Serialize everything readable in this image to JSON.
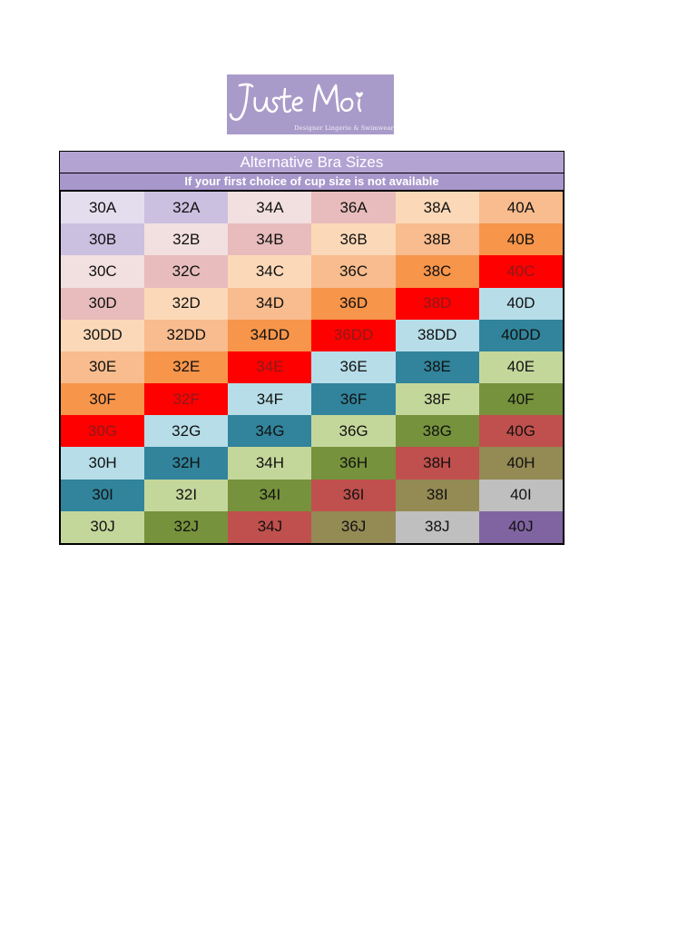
{
  "logo": {
    "text": "Juste Moi",
    "tagline": "Designer Lingerie & Swimwear",
    "background": "#a99bc9"
  },
  "table": {
    "title": "Alternative Bra Sizes",
    "subtitle": "If your first choice of cup size is not available",
    "rows": [
      [
        {
          "label": "30A",
          "bg": "#e3ddee",
          "fg": "#111111"
        },
        {
          "label": "32A",
          "bg": "#cbc0e0",
          "fg": "#111111"
        },
        {
          "label": "34A",
          "bg": "#f2dfe0",
          "fg": "#111111"
        },
        {
          "label": "36A",
          "bg": "#e8bcbc",
          "fg": "#111111"
        },
        {
          "label": "38A",
          "bg": "#fbd9b8",
          "fg": "#111111"
        },
        {
          "label": "40A",
          "bg": "#f8bc8e",
          "fg": "#111111"
        }
      ],
      [
        {
          "label": "30B",
          "bg": "#cbc0e0",
          "fg": "#111111"
        },
        {
          "label": "32B",
          "bg": "#f2dfe0",
          "fg": "#111111"
        },
        {
          "label": "34B",
          "bg": "#e8bcbc",
          "fg": "#111111"
        },
        {
          "label": "36B",
          "bg": "#fbd9b8",
          "fg": "#111111"
        },
        {
          "label": "38B",
          "bg": "#f8bc8e",
          "fg": "#111111"
        },
        {
          "label": "40B",
          "bg": "#f7954a",
          "fg": "#111111"
        }
      ],
      [
        {
          "label": "30C",
          "bg": "#f2dfe0",
          "fg": "#111111"
        },
        {
          "label": "32C",
          "bg": "#e8bcbc",
          "fg": "#111111"
        },
        {
          "label": "34C",
          "bg": "#fbd9b8",
          "fg": "#111111"
        },
        {
          "label": "36C",
          "bg": "#f8bc8e",
          "fg": "#111111"
        },
        {
          "label": "38C",
          "bg": "#f7954a",
          "fg": "#111111"
        },
        {
          "label": "40C",
          "bg": "#ff0000",
          "fg": "#8b1a1a"
        }
      ],
      [
        {
          "label": "30D",
          "bg": "#e8bcbc",
          "fg": "#111111"
        },
        {
          "label": "32D",
          "bg": "#fbd9b8",
          "fg": "#111111"
        },
        {
          "label": "34D",
          "bg": "#f8bc8e",
          "fg": "#111111"
        },
        {
          "label": "36D",
          "bg": "#f7954a",
          "fg": "#111111"
        },
        {
          "label": "38D",
          "bg": "#ff0000",
          "fg": "#8b1a1a"
        },
        {
          "label": "40D",
          "bg": "#b7dde8",
          "fg": "#111111"
        }
      ],
      [
        {
          "label": "30DD",
          "bg": "#fbd9b8",
          "fg": "#111111"
        },
        {
          "label": "32DD",
          "bg": "#f8bc8e",
          "fg": "#111111"
        },
        {
          "label": "34DD",
          "bg": "#f7954a",
          "fg": "#111111"
        },
        {
          "label": "36DD",
          "bg": "#ff0000",
          "fg": "#8b1a1a"
        },
        {
          "label": "38DD",
          "bg": "#b7dde8",
          "fg": "#111111"
        },
        {
          "label": "40DD",
          "bg": "#31849b",
          "fg": "#111111"
        }
      ],
      [
        {
          "label": "30E",
          "bg": "#f8bc8e",
          "fg": "#111111"
        },
        {
          "label": "32E",
          "bg": "#f7954a",
          "fg": "#111111"
        },
        {
          "label": "34E",
          "bg": "#ff0000",
          "fg": "#8b1a1a"
        },
        {
          "label": "36E",
          "bg": "#b7dde8",
          "fg": "#111111"
        },
        {
          "label": "38E",
          "bg": "#31849b",
          "fg": "#111111"
        },
        {
          "label": "40E",
          "bg": "#c4d79b",
          "fg": "#111111"
        }
      ],
      [
        {
          "label": "30F",
          "bg": "#f7954a",
          "fg": "#111111"
        },
        {
          "label": "32F",
          "bg": "#ff0000",
          "fg": "#8b1a1a"
        },
        {
          "label": "34F",
          "bg": "#b7dde8",
          "fg": "#111111"
        },
        {
          "label": "36F",
          "bg": "#31849b",
          "fg": "#111111"
        },
        {
          "label": "38F",
          "bg": "#c4d79b",
          "fg": "#111111"
        },
        {
          "label": "40F",
          "bg": "#76923c",
          "fg": "#111111"
        }
      ],
      [
        {
          "label": "30G",
          "bg": "#ff0000",
          "fg": "#8b1a1a"
        },
        {
          "label": "32G",
          "bg": "#b7dde8",
          "fg": "#111111"
        },
        {
          "label": "34G",
          "bg": "#31849b",
          "fg": "#111111"
        },
        {
          "label": "36G",
          "bg": "#c4d79b",
          "fg": "#111111"
        },
        {
          "label": "38G",
          "bg": "#76923c",
          "fg": "#111111"
        },
        {
          "label": "40G",
          "bg": "#c0504d",
          "fg": "#111111"
        }
      ],
      [
        {
          "label": "30H",
          "bg": "#b7dde8",
          "fg": "#111111"
        },
        {
          "label": "32H",
          "bg": "#31849b",
          "fg": "#111111"
        },
        {
          "label": "34H",
          "bg": "#c4d79b",
          "fg": "#111111"
        },
        {
          "label": "36H",
          "bg": "#76923c",
          "fg": "#111111"
        },
        {
          "label": "38H",
          "bg": "#c0504d",
          "fg": "#111111"
        },
        {
          "label": "40H",
          "bg": "#948a54",
          "fg": "#111111"
        }
      ],
      [
        {
          "label": "30I",
          "bg": "#31849b",
          "fg": "#111111"
        },
        {
          "label": "32I",
          "bg": "#c4d79b",
          "fg": "#111111"
        },
        {
          "label": "34I",
          "bg": "#76923c",
          "fg": "#111111"
        },
        {
          "label": "36I",
          "bg": "#c0504d",
          "fg": "#111111"
        },
        {
          "label": "38I",
          "bg": "#948a54",
          "fg": "#111111"
        },
        {
          "label": "40I",
          "bg": "#bfbfbf",
          "fg": "#111111"
        }
      ],
      [
        {
          "label": "30J",
          "bg": "#c4d79b",
          "fg": "#111111"
        },
        {
          "label": "32J",
          "bg": "#76923c",
          "fg": "#111111"
        },
        {
          "label": "34J",
          "bg": "#c0504d",
          "fg": "#111111"
        },
        {
          "label": "36J",
          "bg": "#948a54",
          "fg": "#111111"
        },
        {
          "label": "38J",
          "bg": "#bfbfbf",
          "fg": "#111111"
        },
        {
          "label": "40J",
          "bg": "#8064a2",
          "fg": "#111111"
        }
      ]
    ]
  }
}
